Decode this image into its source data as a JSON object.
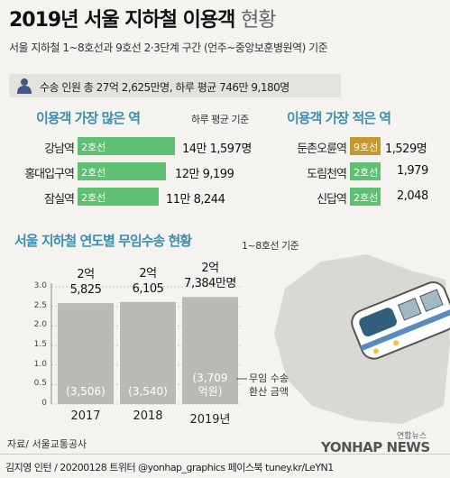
{
  "title": "2019년 서울 지하철 이용객",
  "title_suffix": "현황",
  "subtitle": "서울 지하철 1~8호선과 9호선 2·3단계 구간 (언주~중앙보훈병원역) 기준",
  "totals": "수송 인원 총 27억 2,625만명, 하루 평균 746만 9,180명",
  "most": {
    "title": "이용객 가장 많은 역",
    "note": "하루 평균 기준",
    "stations": [
      {
        "name": "강남역",
        "line": "2호선",
        "value": "14만 1,597명",
        "daily": 141597
      },
      {
        "name": "홍대입구역",
        "line": "2호선",
        "value": "12만 9,199",
        "daily": 129199
      },
      {
        "name": "잠실역",
        "line": "2호선",
        "value": "11만 8,244",
        "daily": 118244
      }
    ]
  },
  "least": {
    "title": "이용객 가장 적은 역",
    "stations": [
      {
        "name": "둔촌오륜역",
        "line": "9호선",
        "value": "1,529명",
        "daily": 1529
      },
      {
        "name": "도림천역",
        "line": "2호선",
        "value": "1,979",
        "daily": 1979
      },
      {
        "name": "신답역",
        "line": "2호선",
        "value": "2,048",
        "daily": 2048
      }
    ]
  },
  "free_section": {
    "title": "서울 지하철 연도별 무임수송 현황",
    "note": "1~8호선 기준",
    "legend_note_1": "무임 수송",
    "legend_note_2": "환산 금액"
  },
  "colors": {
    "line2": "#5fbf73",
    "line9": "#c39a32",
    "bar": "#b9b9b5",
    "accent": "#3a8fb0"
  },
  "chart_data": {
    "type": "bar",
    "categories": [
      "2017",
      "2018",
      "2019년"
    ],
    "values": [
      2.5825,
      2.6105,
      2.7384
    ],
    "value_labels": [
      [
        "2억",
        "5,825"
      ],
      [
        "2억",
        "6,105"
      ],
      [
        "2억",
        "7,384만명"
      ]
    ],
    "inner_labels": [
      [
        "(3,506)"
      ],
      [
        "(3,540)"
      ],
      [
        "(3,709",
        "억원)"
      ]
    ],
    "yticks": [
      "3.0",
      "2.5",
      "2.0",
      "1.5",
      "1.0",
      "0.5",
      "0"
    ],
    "ylim": [
      0,
      3.0
    ]
  },
  "source": "자료/ 서울교통공사",
  "credit": "김지영 인턴 / 20200128 트위터 @yonhap_graphics 페이스북 tuney.kr/LeYN1",
  "agency_small": "연합뉴스",
  "agency": "YONHAP NEWS"
}
